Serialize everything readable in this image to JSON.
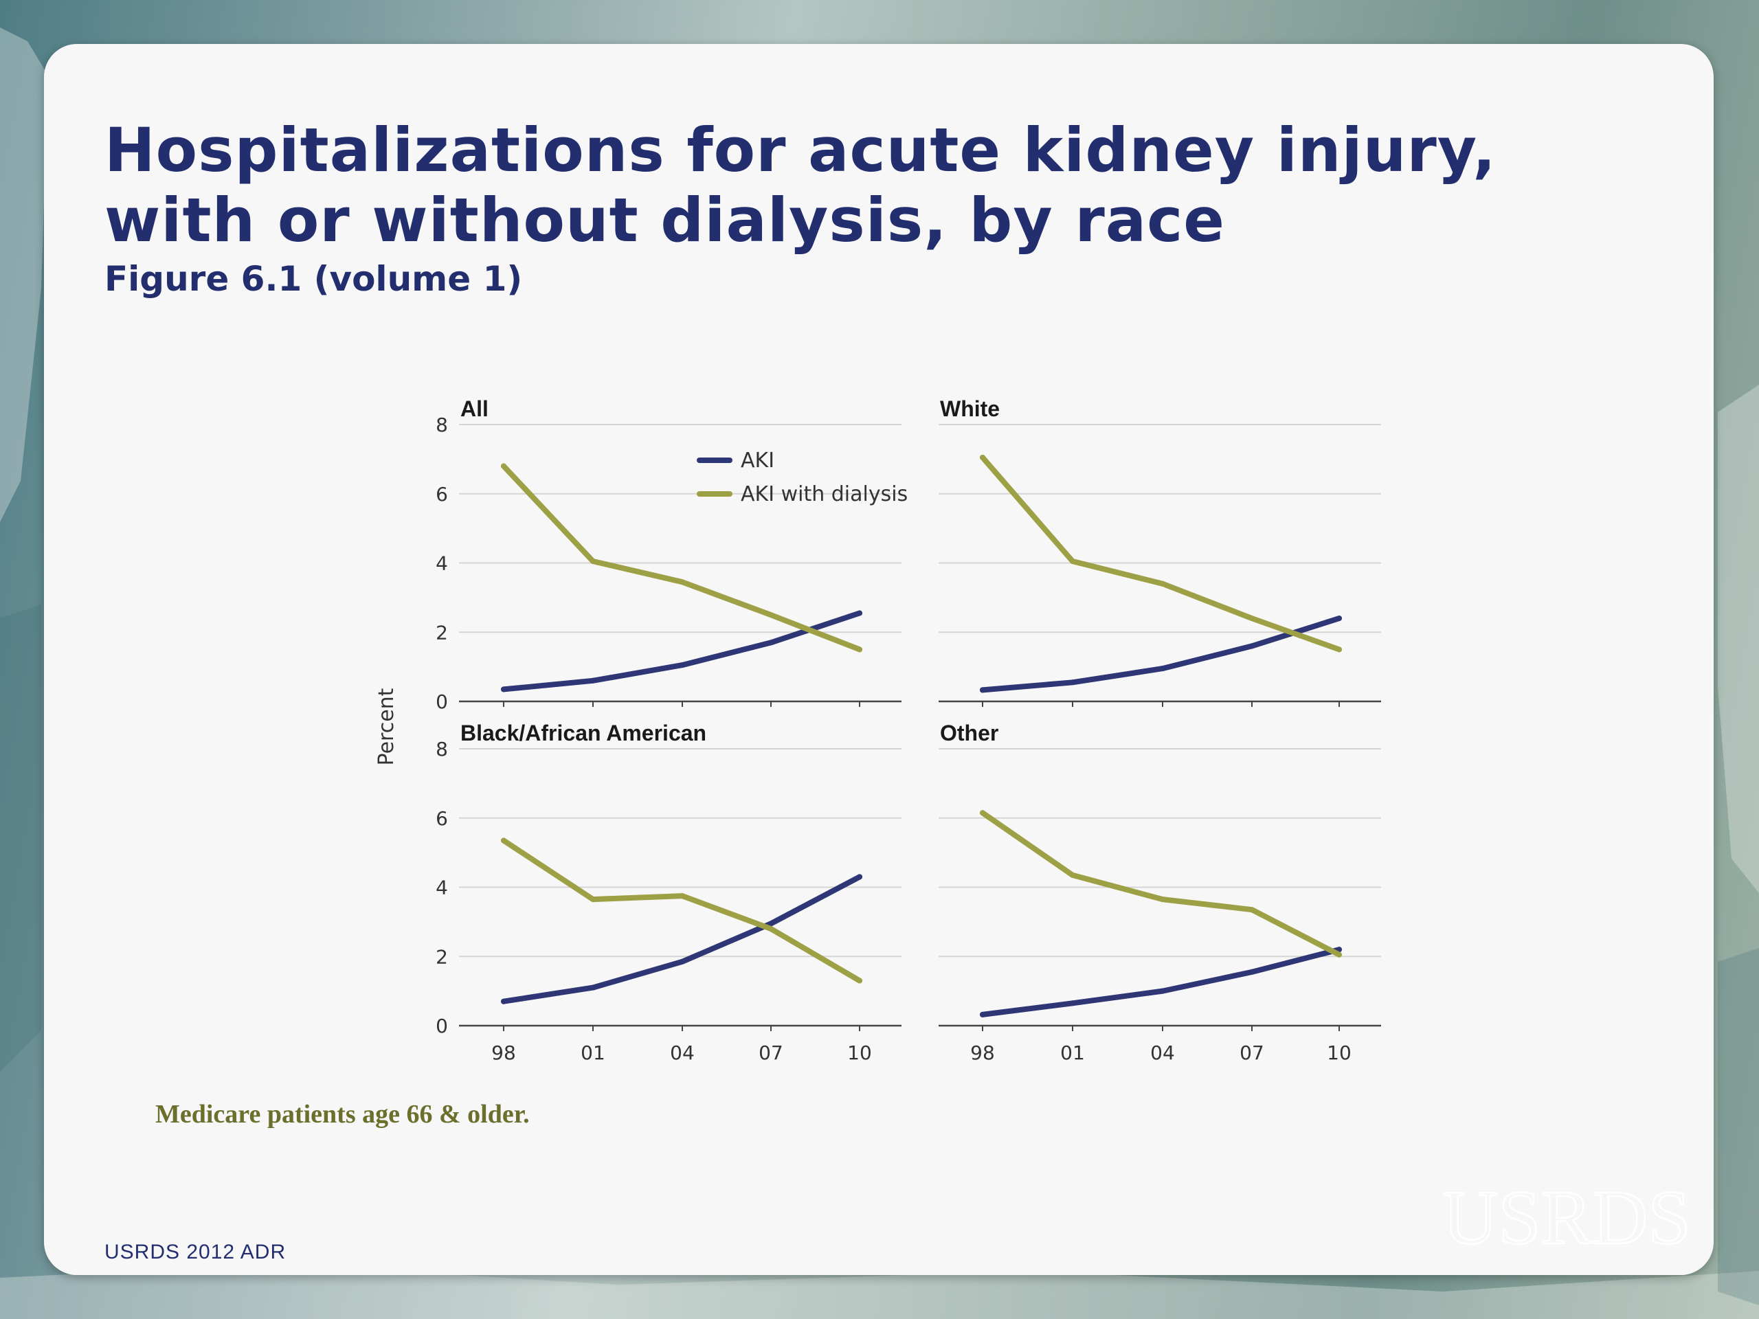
{
  "slide": {
    "title_line1": "Hospitalizations for acute kidney injury,",
    "title_line2": "with or without dialysis, by race",
    "subtitle": "Figure 6.1 (volume 1)",
    "footnote": "Medicare patients age 66 & older.",
    "footer_source": "USRDS 2012 ADR",
    "logo_text": "USRDS"
  },
  "colors": {
    "aki": "#2e3676",
    "aki_dialysis": "#9da045",
    "title": "#232e6f"
  },
  "chart_data": {
    "type": "line",
    "ylabel": "Percent",
    "categories": [
      "98",
      "01",
      "04",
      "07",
      "10"
    ],
    "x": [
      1998,
      2001,
      2004,
      2007,
      2010
    ],
    "ylim": [
      0,
      8
    ],
    "yticks": [
      "0",
      "2",
      "4",
      "6",
      "8"
    ],
    "grid": true,
    "legend": {
      "location": "top-right of first panel",
      "entries": [
        "AKI",
        "AKI with dialysis"
      ]
    },
    "panels": [
      {
        "title": "All",
        "series": [
          {
            "name": "AKI",
            "values": [
              0.35,
              0.6,
              1.05,
              1.7,
              2.55
            ]
          },
          {
            "name": "AKI with dialysis",
            "values": [
              6.8,
              4.05,
              3.45,
              2.5,
              1.5
            ]
          }
        ]
      },
      {
        "title": "White",
        "series": [
          {
            "name": "AKI",
            "values": [
              0.33,
              0.55,
              0.95,
              1.6,
              2.4
            ]
          },
          {
            "name": "AKI with dialysis",
            "values": [
              7.05,
              4.05,
              3.4,
              2.4,
              1.5
            ]
          }
        ]
      },
      {
        "title": "Black/African American",
        "series": [
          {
            "name": "AKI",
            "values": [
              0.7,
              1.1,
              1.85,
              2.95,
              4.3
            ]
          },
          {
            "name": "AKI with dialysis",
            "values": [
              5.35,
              3.65,
              3.75,
              2.8,
              1.3
            ]
          }
        ]
      },
      {
        "title": "Other",
        "series": [
          {
            "name": "AKI",
            "values": [
              0.32,
              0.65,
              1.0,
              1.55,
              2.2
            ]
          },
          {
            "name": "AKI with dialysis",
            "values": [
              6.15,
              4.35,
              3.65,
              3.35,
              2.05
            ]
          }
        ]
      }
    ]
  }
}
